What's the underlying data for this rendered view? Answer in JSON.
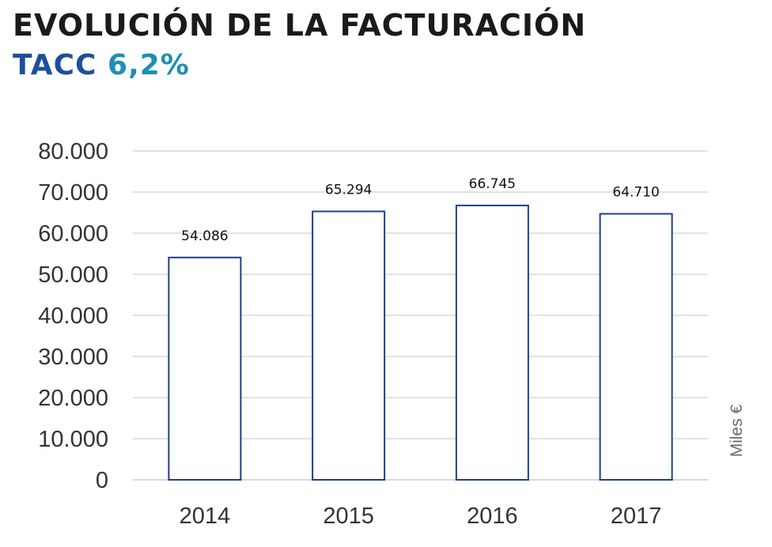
{
  "header": {
    "title": "EVOLUCIÓN DE LA FACTURACIÓN",
    "subtitle_label": "TACC",
    "subtitle_value": "6,2%"
  },
  "colors": {
    "bar_stroke": "#1d3f8f",
    "bar_fill": "#ffffff",
    "grid": "#d9d9d9",
    "subtitle_label": "#1d4f9a",
    "subtitle_value": "#1d8fb3"
  },
  "chart_data": {
    "type": "bar",
    "categories": [
      "2014",
      "2015",
      "2016",
      "2017"
    ],
    "values": [
      54086,
      65294,
      66745,
      64710
    ],
    "data_labels": [
      "54.086",
      "65.294",
      "66.745",
      "64.710"
    ],
    "yticks": [
      "0",
      "10.000",
      "20.000",
      "30.000",
      "40.000",
      "50.000",
      "60.000",
      "70.000",
      "80.000"
    ],
    "ylim": [
      0,
      80000
    ],
    "ytick_step": 10000,
    "ylabel": "Miles €",
    "grid": true,
    "legend": "none"
  }
}
